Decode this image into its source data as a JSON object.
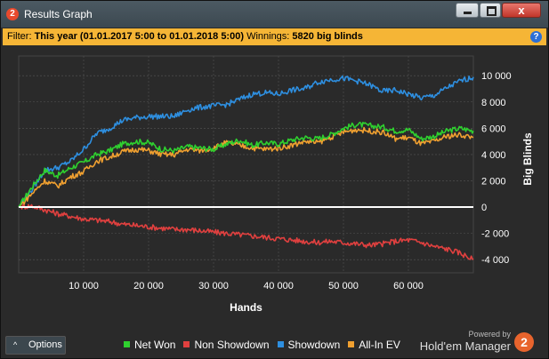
{
  "window": {
    "title": "Results Graph",
    "app_icon_glyph": "2",
    "close_glyph": "x"
  },
  "filter": {
    "label": "Filter:",
    "value": "This year (01.01.2017 5:00 to 01.01.2018 5:00)",
    "winnings_label": "Winnings:",
    "winnings_value": "5820 big blinds",
    "help_glyph": "?"
  },
  "footer": {
    "options_label": "Options",
    "powered_by": "Powered by",
    "brand_name": "Hold'em Manager",
    "brand_glyph": "2"
  },
  "colors": {
    "net_won": "#2fd02f",
    "non_showdown": "#e0403f",
    "showdown": "#2e8fe0",
    "all_in_ev": "#f0a030",
    "zero_line": "#ffffff",
    "grid": "#555555"
  },
  "chart_data": {
    "type": "line",
    "xlabel": "Hands",
    "ylabel": "Big Blinds",
    "xlim": [
      0,
      70000
    ],
    "ylim": [
      -5000,
      11500
    ],
    "x_ticks": [
      10000,
      20000,
      30000,
      40000,
      50000,
      60000
    ],
    "x_tick_labels": [
      "10 000",
      "20 000",
      "30 000",
      "40 000",
      "50 000",
      "60 000"
    ],
    "y_ticks": [
      -4000,
      -2000,
      0,
      2000,
      4000,
      6000,
      8000,
      10000
    ],
    "y_tick_labels": [
      "-4 000",
      "-2 000",
      "0",
      "2 000",
      "4 000",
      "6 000",
      "8 000",
      "10 000"
    ],
    "legend_position": "bottom",
    "x": [
      0,
      2000,
      4000,
      6000,
      8000,
      10000,
      12000,
      14000,
      16000,
      18000,
      20000,
      22000,
      24000,
      26000,
      28000,
      30000,
      32000,
      34000,
      36000,
      38000,
      40000,
      42000,
      44000,
      46000,
      48000,
      50000,
      52000,
      54000,
      56000,
      58000,
      60000,
      62000,
      64000,
      66000,
      68000,
      70000
    ],
    "series": [
      {
        "name": "Net Won",
        "color_key": "net_won",
        "values": [
          0,
          1500,
          2800,
          2400,
          3000,
          3400,
          4000,
          4300,
          4800,
          5000,
          4900,
          4400,
          4300,
          4600,
          4500,
          4400,
          4800,
          5100,
          4700,
          4900,
          4800,
          5100,
          5300,
          5200,
          5500,
          6000,
          6300,
          6200,
          6100,
          5800,
          5900,
          5200,
          5400,
          5800,
          6000,
          5800
        ]
      },
      {
        "name": "Non Showdown",
        "color_key": "non_showdown",
        "values": [
          0,
          100,
          -200,
          -500,
          -700,
          -900,
          -1000,
          -1100,
          -1300,
          -1400,
          -1500,
          -1600,
          -1700,
          -1700,
          -1800,
          -1900,
          -2000,
          -2100,
          -2200,
          -2300,
          -2400,
          -2500,
          -2600,
          -2700,
          -2600,
          -2700,
          -2800,
          -2900,
          -2800,
          -2600,
          -2500,
          -2700,
          -3000,
          -3200,
          -3500,
          -4000
        ]
      },
      {
        "name": "Showdown",
        "color_key": "showdown",
        "values": [
          0,
          1300,
          2800,
          3000,
          3500,
          4400,
          5600,
          6000,
          6600,
          6800,
          6900,
          6900,
          6900,
          7400,
          7600,
          7700,
          7800,
          8200,
          8600,
          8700,
          8600,
          8900,
          9000,
          9500,
          9700,
          9800,
          9600,
          9300,
          8800,
          8900,
          8600,
          8300,
          8500,
          9100,
          9600,
          9900
        ]
      },
      {
        "name": "All-In EV",
        "color_key": "all_in_ev",
        "values": [
          0,
          1000,
          2000,
          1600,
          2300,
          2700,
          3500,
          3800,
          4200,
          4400,
          4300,
          4000,
          4000,
          4400,
          4300,
          4500,
          4900,
          4700,
          4500,
          4400,
          4500,
          4700,
          5000,
          4900,
          5300,
          5700,
          5900,
          5800,
          5700,
          5200,
          5300,
          4800,
          5000,
          5400,
          5500,
          5300
        ]
      }
    ]
  }
}
